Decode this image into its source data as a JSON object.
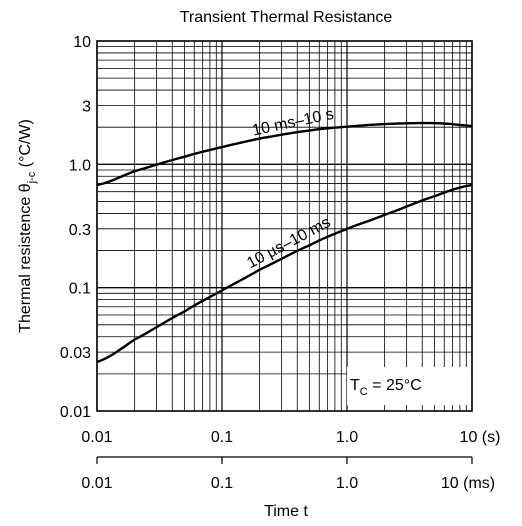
{
  "chart_data": {
    "type": "line",
    "title": "Transient Thermal Resistance",
    "ylabel_main": "Thermal resistence",
    "ylabel_symbol": "θ",
    "ylabel_subscript": "j-c",
    "ylabel_unit": "(°C/W)",
    "xlabel": "Time  t",
    "x_scale": "log",
    "y_scale": "log",
    "xlim": [
      0.01,
      10
    ],
    "ylim": [
      0.01,
      10
    ],
    "grid": true,
    "y_ticks": [
      {
        "value": 10,
        "label": "10"
      },
      {
        "value": 3,
        "label": "3"
      },
      {
        "value": 1,
        "label": "1.0"
      },
      {
        "value": 0.3,
        "label": "0.3"
      },
      {
        "value": 0.1,
        "label": "0.1"
      },
      {
        "value": 0.03,
        "label": "0.03"
      },
      {
        "value": 0.01,
        "label": "0.01"
      }
    ],
    "x_ticks_s": [
      {
        "value": 0.01,
        "label": "0.01"
      },
      {
        "value": 0.1,
        "label": "0.1"
      },
      {
        "value": 1,
        "label": "1.0"
      },
      {
        "value": 10,
        "label": "10 (s)"
      }
    ],
    "x_ticks_ms": [
      {
        "value": 0.01,
        "label": "0.01"
      },
      {
        "value": 0.1,
        "label": "0.1"
      },
      {
        "value": 1,
        "label": "1.0"
      },
      {
        "value": 10,
        "label": "10 (ms)"
      }
    ],
    "series": [
      {
        "name": "10 ms–10 s",
        "x": [
          0.01,
          0.02,
          0.05,
          0.1,
          0.2,
          0.5,
          1,
          2,
          4,
          6,
          10
        ],
        "y": [
          0.68,
          0.88,
          1.15,
          1.38,
          1.62,
          1.88,
          2.02,
          2.12,
          2.16,
          2.14,
          2.05
        ]
      },
      {
        "name": "10 µs–10 ms",
        "x": [
          0.01,
          0.02,
          0.05,
          0.1,
          0.2,
          0.5,
          1,
          2,
          5,
          10
        ],
        "y": [
          0.025,
          0.038,
          0.064,
          0.095,
          0.14,
          0.22,
          0.3,
          0.39,
          0.55,
          0.68
        ]
      }
    ],
    "annotations": [
      {
        "text_main": "T",
        "text_sub": "C",
        "text_rest": " = 25°C"
      }
    ]
  }
}
